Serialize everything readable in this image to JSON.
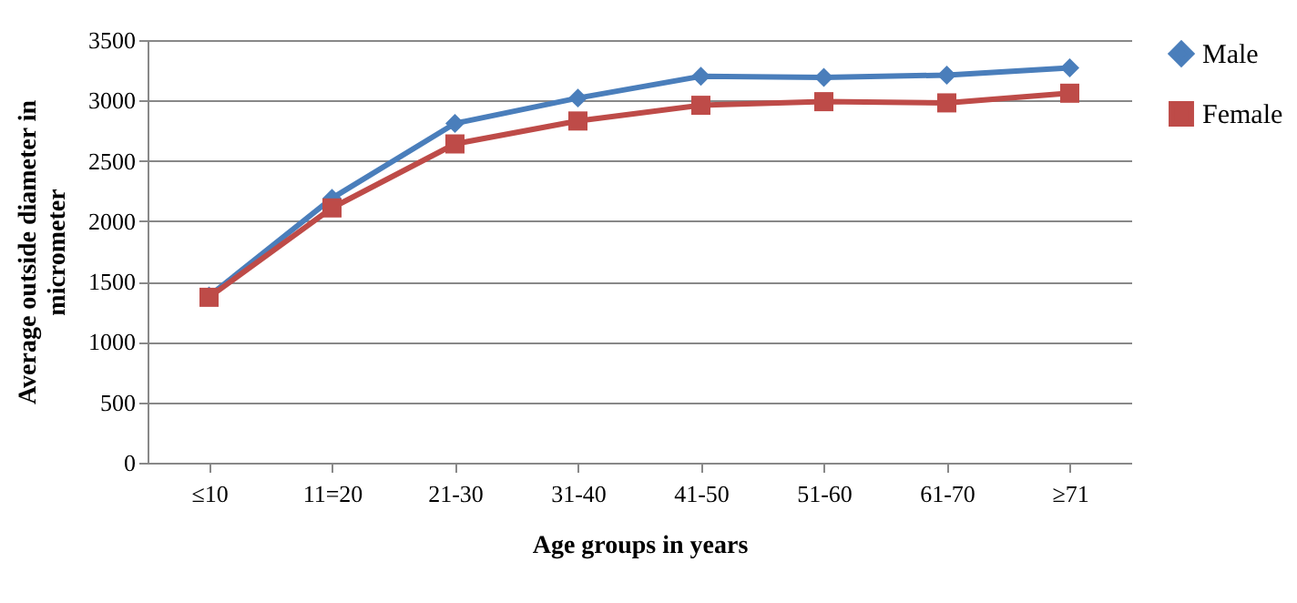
{
  "chart_data": {
    "type": "line",
    "xlabel": "Age groups in years",
    "ylabel": "Average outside diameter in micrometer",
    "categories": [
      "≤10",
      "11=20",
      "21-30",
      "31-40",
      "41-50",
      "51-60",
      "61-70",
      "≥71"
    ],
    "series": [
      {
        "name": "Male",
        "color": "#4a7ebb",
        "marker": "diamond",
        "values": [
          1380,
          2190,
          2810,
          3020,
          3200,
          3190,
          3210,
          3270
        ]
      },
      {
        "name": "Female",
        "color": "#be4b48",
        "marker": "square",
        "values": [
          1370,
          2110,
          2640,
          2830,
          2960,
          2990,
          2980,
          3060
        ]
      }
    ],
    "ylim": [
      0,
      3500
    ],
    "yticks": [
      0,
      500,
      1000,
      1500,
      2000,
      2500,
      3000,
      3500
    ],
    "grid": "y",
    "legend": "right",
    "line_style": "solid"
  }
}
